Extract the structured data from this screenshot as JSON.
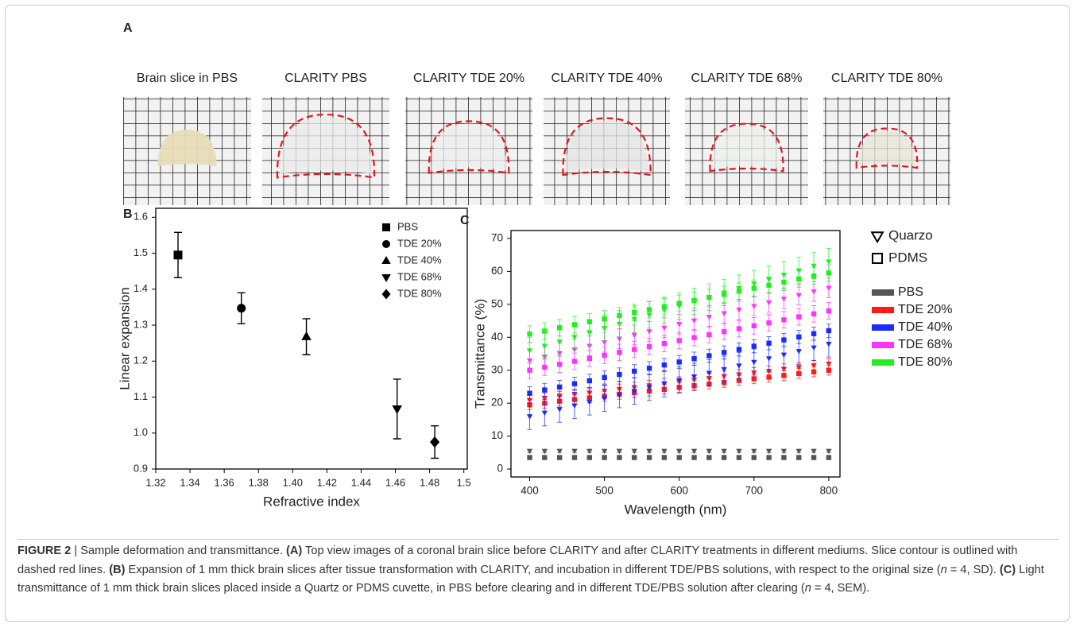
{
  "panel_a": {
    "panel": "A",
    "images": [
      "Brain slice in PBS",
      "CLARITY PBS",
      "CLARITY TDE 20%",
      "CLARITY TDE 40%",
      "CLARITY TDE 68%",
      "CLARITY TDE 80%"
    ]
  },
  "chart_data": [
    {
      "type": "scatter",
      "panel": "B",
      "x_label": "Refractive index",
      "y_label": "Linear expansion",
      "xlim": [
        1.32,
        1.502
      ],
      "ylim": [
        0.9,
        1.625
      ],
      "xticks": [
        1.32,
        1.34,
        1.36,
        1.38,
        {
          "value": 1.4,
          "label": "1.40"
        },
        1.42,
        1.44,
        1.46,
        1.48,
        1.5
      ],
      "yticks": [
        0.9,
        {
          "value": 1,
          "label": "1.0"
        },
        1.1,
        1.2,
        1.3,
        1.4,
        1.5,
        1.6
      ],
      "color": "#000000",
      "series": [
        {
          "name": "PBS",
          "marker": "square",
          "x": [
            1.333
          ],
          "values": [
            1.495
          ],
          "errors": [
            0.063
          ]
        },
        {
          "name": "TDE 20%",
          "marker": "circle",
          "x": [
            1.37
          ],
          "values": [
            1.347
          ],
          "errors": [
            0.043
          ]
        },
        {
          "name": "TDE 40%",
          "marker": "triangle-up",
          "x": [
            1.408
          ],
          "values": [
            1.268
          ],
          "errors": [
            0.05
          ]
        },
        {
          "name": "TDE 68%",
          "marker": "triangle-down",
          "x": [
            1.461
          ],
          "values": [
            1.067
          ],
          "errors": [
            0.083
          ]
        },
        {
          "name": "TDE 80%",
          "marker": "diamond",
          "x": [
            1.483
          ],
          "values": [
            0.975
          ],
          "errors": [
            0.045
          ]
        }
      ]
    },
    {
      "type": "scatter",
      "panel": "C",
      "x_label": "Wavelength (nm)",
      "y_label": "Transmittance (%)",
      "xlim": [
        375,
        815
      ],
      "ylim": [
        -2.4,
        72.4
      ],
      "xticks": [
        400,
        500,
        600,
        700,
        800
      ],
      "yticks": [
        0,
        10,
        20,
        30,
        40,
        50,
        60,
        70
      ],
      "legend_markers": [
        {
          "label": "Quarzo",
          "marker": "triangle-down"
        },
        {
          "label": "PDMS",
          "marker": "square"
        }
      ],
      "legend_colors": [
        {
          "label": "PBS",
          "color": "#555555"
        },
        {
          "label": "TDE 20%",
          "color": "#ff1a1a"
        },
        {
          "label": "TDE 40%",
          "color": "#1a2bff"
        },
        {
          "label": "TDE 68%",
          "color": "#ff33ff"
        },
        {
          "label": "TDE 80%",
          "color": "#22ee22"
        }
      ],
      "x": [
        400,
        420,
        440,
        460,
        480,
        500,
        520,
        540,
        560,
        580,
        600,
        620,
        640,
        660,
        680,
        700,
        720,
        740,
        760,
        780,
        800
      ],
      "series": [
        {
          "medium": 0,
          "cuvette": 1,
          "values": [
            3.5,
            3.5,
            3.5,
            3.5,
            3.5,
            3.5,
            3.5,
            3.5,
            3.5,
            3.5,
            3.5,
            3.5,
            3.5,
            3.5,
            3.5,
            3.5,
            3.5,
            3.5,
            3.5,
            3.5,
            3.5
          ],
          "errors": [
            0.5,
            0.5,
            0.5,
            0.5,
            0.5,
            0.5,
            0.5,
            0.5,
            0.5,
            0.5,
            0.5,
            0.5,
            0.5,
            0.5,
            0.5,
            0.5,
            0.5,
            0.5,
            0.5,
            0.5,
            0.5
          ]
        },
        {
          "medium": 0,
          "cuvette": 0,
          "values": [
            5.5,
            5.5,
            5.5,
            5.5,
            5.5,
            5.5,
            5.5,
            5.5,
            5.5,
            5.5,
            5.5,
            5.5,
            5.5,
            5.5,
            5.5,
            5.5,
            5.5,
            5.5,
            5.5,
            5.5,
            5.5
          ],
          "errors": [
            0.5,
            0.5,
            0.5,
            0.5,
            0.5,
            0.5,
            0.5,
            0.5,
            0.5,
            0.5,
            0.5,
            0.5,
            0.5,
            0.5,
            0.5,
            0.5,
            0.5,
            0.5,
            0.5,
            0.5,
            0.5
          ]
        },
        {
          "medium": 1,
          "cuvette": 1,
          "values": [
            19.5,
            20.0,
            20.6,
            21.1,
            21.6,
            22.1,
            22.7,
            23.2,
            23.7,
            24.2,
            24.8,
            25.3,
            25.8,
            26.3,
            26.9,
            27.4,
            27.9,
            28.4,
            29.0,
            29.5,
            30.0
          ],
          "errors": [
            1.5,
            1.5,
            1.5,
            1.5,
            1.5,
            1.5,
            1.5,
            1.5,
            1.5,
            1.5,
            1.5,
            1.5,
            1.5,
            1.5,
            1.5,
            1.5,
            1.5,
            1.5,
            1.5,
            1.5,
            1.5
          ]
        },
        {
          "medium": 1,
          "cuvette": 0,
          "values": [
            21,
            21.6,
            22.1,
            22.7,
            23.2,
            23.8,
            24.3,
            24.9,
            25.4,
            26,
            26.5,
            27.1,
            27.6,
            28.2,
            28.7,
            29.3,
            29.8,
            30.4,
            30.9,
            31.5,
            32
          ],
          "errors": [
            1.5,
            1.5,
            1.5,
            1.5,
            1.5,
            1.5,
            1.5,
            1.5,
            1.5,
            1.5,
            1.5,
            1.5,
            1.5,
            1.5,
            1.5,
            1.5,
            1.5,
            1.5,
            1.5,
            1.5,
            1.5
          ]
        },
        {
          "medium": 2,
          "cuvette": 1,
          "values": [
            23,
            24,
            24.9,
            25.9,
            26.8,
            27.8,
            28.7,
            29.7,
            30.6,
            31.6,
            32.5,
            33.5,
            34.4,
            35.4,
            36.3,
            37.3,
            38.2,
            39.2,
            40.1,
            41.1,
            42
          ],
          "errors": [
            2,
            2,
            2,
            2,
            2,
            2,
            2,
            2,
            2,
            2,
            2,
            2,
            2,
            2,
            2,
            2,
            2,
            2,
            2,
            2,
            2
          ]
        },
        {
          "medium": 2,
          "cuvette": 0,
          "values": [
            16,
            17.1,
            18.2,
            19.3,
            20.4,
            21.5,
            22.6,
            23.7,
            24.8,
            25.9,
            27,
            28.1,
            29.2,
            30.3,
            31.4,
            32.5,
            33.6,
            34.7,
            35.8,
            36.9,
            38
          ],
          "errors": [
            4,
            4,
            4,
            4,
            4,
            4,
            4,
            4,
            4,
            4,
            4,
            4,
            4,
            4,
            4,
            4,
            4,
            4,
            4,
            4,
            4
          ]
        },
        {
          "medium": 3,
          "cuvette": 1,
          "values": [
            30,
            30.9,
            31.8,
            32.7,
            33.6,
            34.5,
            35.4,
            36.3,
            37.2,
            38.1,
            39,
            39.9,
            40.8,
            41.7,
            42.6,
            43.5,
            44.4,
            45.3,
            46.2,
            47.1,
            48
          ],
          "errors": [
            2.5,
            2.5,
            2.5,
            2.5,
            2.5,
            2.5,
            2.5,
            2.5,
            2.5,
            2.5,
            2.5,
            2.5,
            2.5,
            2.5,
            2.5,
            2.5,
            2.5,
            2.5,
            2.5,
            2.5,
            2.5
          ]
        },
        {
          "medium": 3,
          "cuvette": 0,
          "values": [
            33,
            34.1,
            35.2,
            36.3,
            37.4,
            38.5,
            39.6,
            40.7,
            41.8,
            42.9,
            44,
            45.1,
            46.2,
            47.3,
            48.4,
            49.5,
            50.6,
            51.7,
            52.8,
            53.9,
            55
          ],
          "errors": [
            3,
            3,
            3,
            3,
            3,
            3,
            3,
            3,
            3,
            3,
            3,
            3,
            3,
            3,
            3,
            3,
            3,
            3,
            3,
            3,
            3
          ]
        },
        {
          "medium": 4,
          "cuvette": 1,
          "values": [
            41,
            41.9,
            42.9,
            43.8,
            44.7,
            45.6,
            46.6,
            47.5,
            48.4,
            49.3,
            50.3,
            51.2,
            52.1,
            53,
            54,
            54.9,
            55.8,
            56.7,
            57.7,
            58.6,
            59.5
          ],
          "errors": [
            2.5,
            2.5,
            2.5,
            2.5,
            2.5,
            2.5,
            2.5,
            2.5,
            2.5,
            2.5,
            2.5,
            2.5,
            2.5,
            2.5,
            2.5,
            2.5,
            2.5,
            2.5,
            2.5,
            2.5,
            2.5
          ]
        },
        {
          "medium": 4,
          "cuvette": 0,
          "values": [
            36,
            37.4,
            38.7,
            40.1,
            41.4,
            42.8,
            44.1,
            45.5,
            46.8,
            48.2,
            49.5,
            50.9,
            52.2,
            53.6,
            54.9,
            56.3,
            57.6,
            59,
            60.3,
            61.7,
            63
          ],
          "errors": [
            4,
            4,
            4,
            4,
            4,
            4,
            4,
            4,
            4,
            4,
            4,
            4,
            4,
            4,
            4,
            4,
            4,
            4,
            4,
            4,
            4
          ]
        }
      ]
    }
  ],
  "caption": {
    "parts": [
      {
        "text": "FIGURE 2",
        "style": "bold"
      },
      {
        "text": " | Sample deformation and transmittance. "
      },
      {
        "text": "(A)",
        "style": "bold"
      },
      {
        "text": " Top view images of a coronal brain slice before CLARITY and after CLARITY treatments in different mediums. Slice contour is outlined with dashed red lines. "
      },
      {
        "text": "(B)",
        "style": "bold"
      },
      {
        "text": " Expansion of 1 mm thick brain slices after tissue transformation with CLARITY, and incubation in different TDE/PBS solutions, with respect to the original size ("
      },
      {
        "text": "n",
        "style": "italic"
      },
      {
        "text": " = 4, SD). "
      },
      {
        "text": "(C)",
        "style": "bold"
      },
      {
        "text": " Light transmittance of 1 mm thick brain slices placed inside a Quartz or PDMS cuvette, in PBS before clearing and in different TDE/PBS solution after clearing ("
      },
      {
        "text": "n",
        "style": "italic"
      },
      {
        "text": " = 4, SEM)."
      }
    ]
  }
}
